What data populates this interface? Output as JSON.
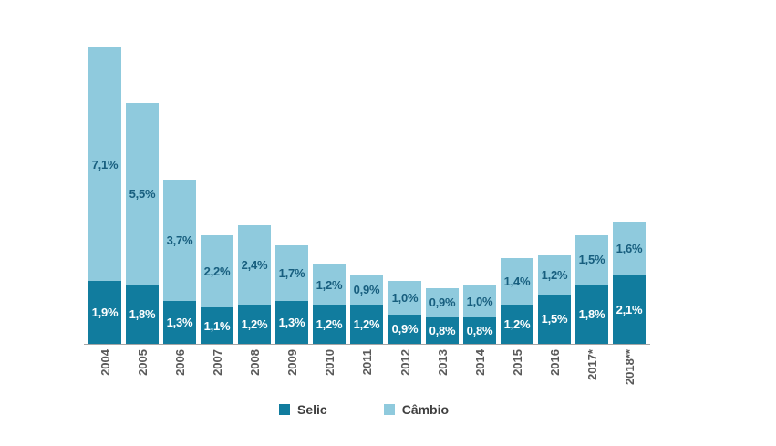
{
  "chart_data": {
    "type": "bar",
    "stacked": true,
    "title": "",
    "xlabel": "",
    "ylabel": "",
    "ylim": [
      0,
      9.5
    ],
    "grid": false,
    "legend_position": "bottom",
    "categories": [
      "2004",
      "2005",
      "2006",
      "2007",
      "2008",
      "2009",
      "2010",
      "2011",
      "2012",
      "2013",
      "2014",
      "2015",
      "2016",
      "2017*",
      "2018**"
    ],
    "series": [
      {
        "name": "Selic",
        "color": "#117c9e",
        "label_color": "#ffffff",
        "values": [
          1.9,
          1.8,
          1.3,
          1.1,
          1.2,
          1.3,
          1.2,
          1.2,
          0.9,
          0.8,
          0.8,
          1.2,
          1.5,
          1.8,
          2.1
        ],
        "labels": [
          "1,9%",
          "1,8%",
          "1,3%",
          "1,1%",
          "1,2%",
          "1,3%",
          "1,2%",
          "1,2%",
          "0,9%",
          "0,8%",
          "0,8%",
          "1,2%",
          "1,5%",
          "1,8%",
          "2,1%"
        ]
      },
      {
        "name": "Câmbio",
        "color": "#8fcadd",
        "label_color": "#175e7e",
        "values": [
          7.1,
          5.5,
          3.7,
          2.2,
          2.4,
          1.7,
          1.2,
          0.9,
          1.0,
          0.9,
          1.0,
          1.4,
          1.2,
          1.5,
          1.6
        ],
        "labels": [
          "7,1%",
          "5,5%",
          "3,7%",
          "2,2%",
          "2,4%",
          "1,7%",
          "1,2%",
          "0,9%",
          "1,0%",
          "0,9%",
          "1,0%",
          "1,4%",
          "1,2%",
          "1,5%",
          "1,6%"
        ]
      }
    ],
    "totals": [
      9.0,
      7.3,
      5.0,
      3.3,
      3.6,
      3.0,
      2.4,
      2.1,
      1.9,
      1.7,
      1.8,
      2.6,
      2.7,
      3.3,
      3.7
    ]
  },
  "axis": {
    "line_color": "#a6a6a6",
    "tick_label_color": "#595959"
  },
  "legend": {
    "text_color": "#3f3f3f"
  }
}
